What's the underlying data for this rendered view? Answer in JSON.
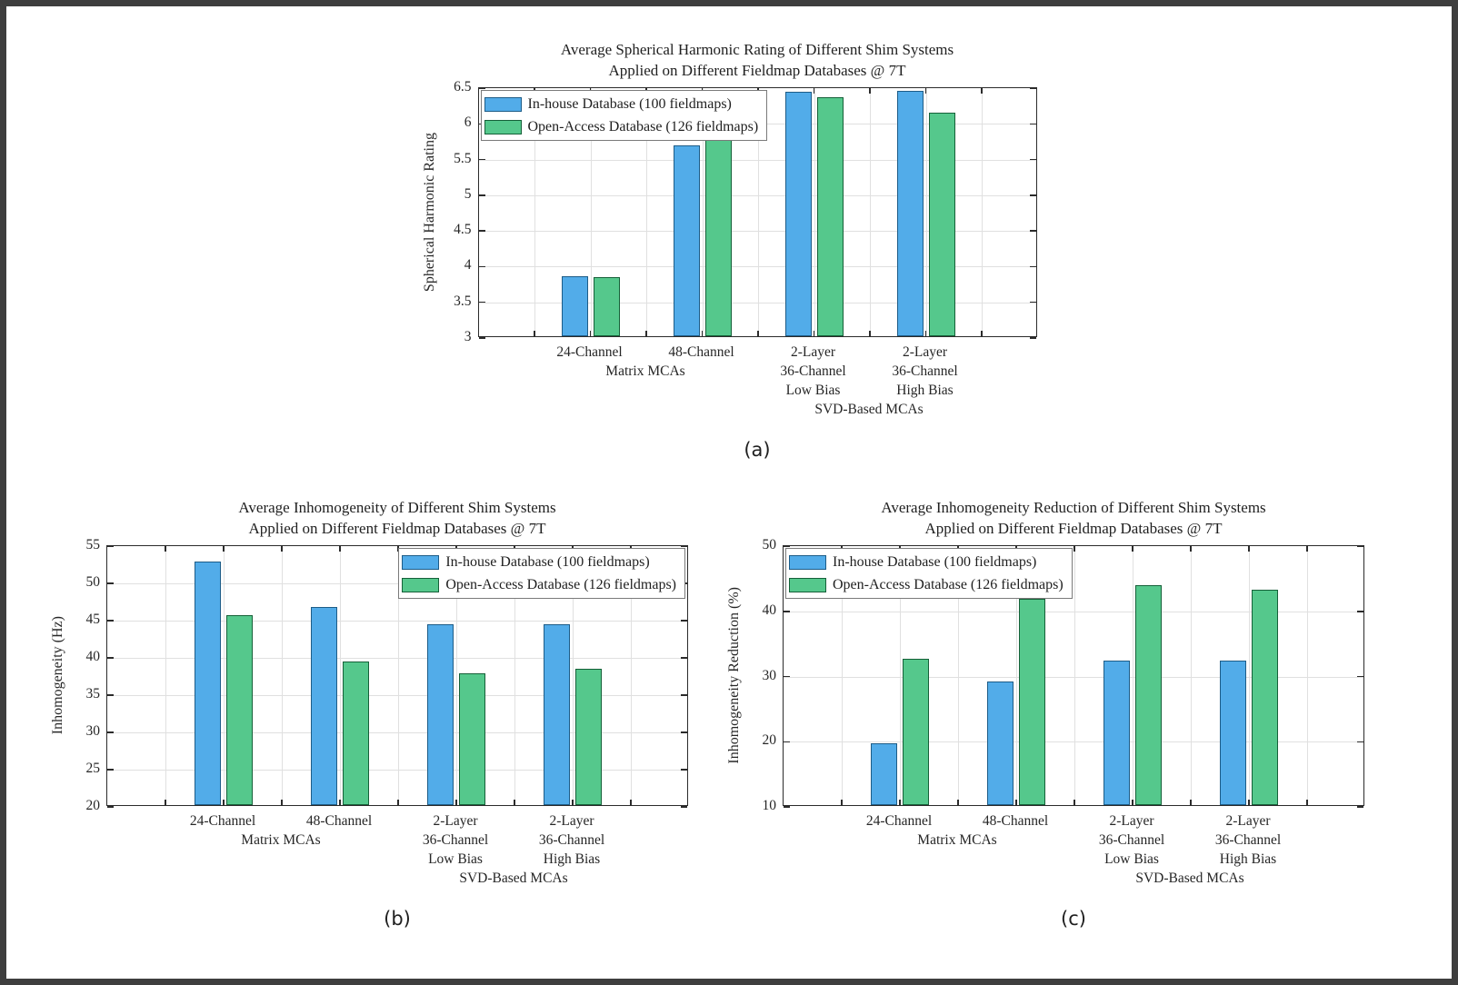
{
  "colors": {
    "frame": "#3E3E3E",
    "axis": "#2B2B2B",
    "grid": "#E0E0E0",
    "legend_border": "#7A7A7A",
    "series": [
      {
        "name": "In-house Database (100 fieldmaps)",
        "fill": "#52ACE9",
        "border": "#1D5C87"
      },
      {
        "name": "Open-Access Database (126 fieldmaps)",
        "fill": "#55C88C",
        "border": "#156038"
      }
    ]
  },
  "chart_data": [
    {
      "id": "a",
      "type": "bar",
      "title_lines": [
        "Average Spherical Harmonic Rating of Different Shim Systems",
        "Applied on Different Fieldmap Databases @ 7T"
      ],
      "ylabel": "Spherical Harmonic Rating",
      "xlabel": "",
      "ylim": [
        3,
        6.5
      ],
      "grid": "on",
      "legend_position": "top-left",
      "yticks": [
        3,
        3.5,
        4,
        4.5,
        5,
        5.5,
        6,
        6.5
      ],
      "ytick_labels": [
        "3",
        "3.5",
        "4",
        "4.5",
        "5",
        "5.5",
        "6",
        "6.5"
      ],
      "categories": [
        [
          "24-Channel"
        ],
        [
          "48-Channel"
        ],
        [
          "2-Layer",
          "36-Channel",
          "Low Bias"
        ],
        [
          "2-Layer",
          "36-Channel",
          "High Bias"
        ]
      ],
      "group_labels": [
        {
          "text": "Matrix MCAs",
          "position": 0.3,
          "line": 2
        },
        {
          "text": "SVD-Based MCAs",
          "position": 0.7,
          "line": 4
        }
      ],
      "series": [
        {
          "name": "In-house Database (100 fieldmaps)",
          "values": [
            3.84,
            5.67,
            6.42,
            6.44
          ]
        },
        {
          "name": "Open-Access Database (126 fieldmaps)",
          "values": [
            3.83,
            5.76,
            6.35,
            6.13
          ]
        }
      ],
      "caption": "(a)"
    },
    {
      "id": "b",
      "type": "bar",
      "title_lines": [
        "Average Inhomogeneity of Different Shim Systems",
        "Applied on Different Fieldmap Databases @ 7T"
      ],
      "ylabel": "Inhomogeneity (Hz)",
      "xlabel": "",
      "ylim": [
        20,
        55
      ],
      "grid": "on",
      "legend_position": "top-right",
      "yticks": [
        20,
        25,
        30,
        35,
        40,
        45,
        50,
        55
      ],
      "ytick_labels": [
        "20",
        "25",
        "30",
        "35",
        "40",
        "45",
        "50",
        "55"
      ],
      "categories": [
        [
          "24-Channel"
        ],
        [
          "48-Channel"
        ],
        [
          "2-Layer",
          "36-Channel",
          "Low Bias"
        ],
        [
          "2-Layer",
          "36-Channel",
          "High Bias"
        ]
      ],
      "group_labels": [
        {
          "text": "Matrix MCAs",
          "position": 0.3,
          "line": 2
        },
        {
          "text": "SVD-Based MCAs",
          "position": 0.7,
          "line": 4
        }
      ],
      "series": [
        {
          "name": "In-house Database (100 fieldmaps)",
          "values": [
            52.7,
            46.6,
            44.3,
            44.3
          ]
        },
        {
          "name": "Open-Access Database (126 fieldmaps)",
          "values": [
            45.5,
            39.3,
            37.7,
            38.3
          ]
        }
      ],
      "caption": "(b)"
    },
    {
      "id": "c",
      "type": "bar",
      "title_lines": [
        "Average Inhomogeneity Reduction of Different Shim Systems",
        "Applied on Different Fieldmap Databases @ 7T"
      ],
      "ylabel": "Inhomogeneity Reduction (%)",
      "xlabel": "",
      "ylim": [
        10,
        50
      ],
      "grid": "on",
      "legend_position": "top-left",
      "yticks": [
        10,
        20,
        30,
        40,
        50
      ],
      "ytick_labels": [
        "10",
        "20",
        "30",
        "40",
        "50"
      ],
      "categories": [
        [
          "24-Channel"
        ],
        [
          "48-Channel"
        ],
        [
          "2-Layer",
          "36-Channel",
          "Low Bias"
        ],
        [
          "2-Layer",
          "36-Channel",
          "High Bias"
        ]
      ],
      "group_labels": [
        {
          "text": "Matrix MCAs",
          "position": 0.3,
          "line": 2
        },
        {
          "text": "SVD-Based MCAs",
          "position": 0.7,
          "line": 4
        }
      ],
      "series": [
        {
          "name": "In-house Database (100 fieldmaps)",
          "values": [
            19.5,
            28.9,
            32.1,
            32.1
          ]
        },
        {
          "name": "Open-Access Database (126 fieldmaps)",
          "values": [
            32.5,
            41.6,
            43.8,
            43.0
          ]
        }
      ],
      "caption": "(c)"
    }
  ]
}
